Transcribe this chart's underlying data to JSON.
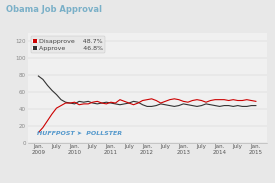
{
  "title": "Obama Job Approval",
  "title_fontsize": 6,
  "title_color": "#7ab0c8",
  "disapprove_label": "Disapprove",
  "approve_label": "Approve",
  "disapprove_pct": "48.7%",
  "approve_pct": "46.8%",
  "disapprove_color": "#cc0000",
  "approve_color": "#333333",
  "background_color": "#e8e8e8",
  "plot_bg_color": "#f0f0f0",
  "ylim": [
    0,
    130
  ],
  "yticks": [
    0,
    20,
    40,
    60,
    80,
    100,
    120
  ],
  "watermark": "HUFFPOST ➤  POLLSTER",
  "watermark_color": "#5599cc",
  "watermark_fontsize": 4.5,
  "tick_fontsize": 4,
  "legend_fontsize": 4.5,
  "xtick_labels": [
    "Jan.\n2009",
    "July",
    "Jan.\n2010",
    "July",
    "Jan.\n2011",
    "July",
    "Jan.\n2012",
    "July",
    "Jan.\n2013",
    "July",
    "Jan.\n2014",
    "July",
    "Jan.\n2015"
  ],
  "approve_data": [
    79,
    75,
    68,
    62,
    57,
    51,
    48,
    47,
    46,
    49,
    48,
    49,
    47,
    46,
    47,
    48,
    47,
    46,
    45,
    46,
    47,
    49,
    48,
    45,
    43,
    43,
    44,
    46,
    45,
    44,
    43,
    44,
    46,
    45,
    44,
    43,
    44,
    46,
    45,
    44,
    43,
    44,
    44,
    43,
    44,
    43,
    43,
    44,
    44
  ],
  "disapprove_data": [
    12,
    18,
    26,
    34,
    41,
    44,
    47,
    47,
    48,
    45,
    46,
    46,
    48,
    49,
    47,
    46,
    48,
    47,
    51,
    49,
    47,
    45,
    47,
    50,
    51,
    52,
    50,
    47,
    49,
    51,
    52,
    51,
    49,
    48,
    50,
    51,
    50,
    48,
    50,
    51,
    51,
    51,
    50,
    51,
    50,
    50,
    51,
    50,
    49
  ]
}
